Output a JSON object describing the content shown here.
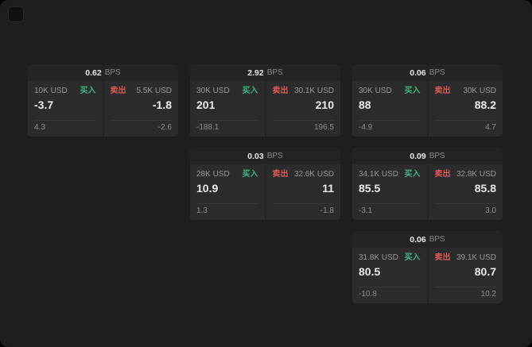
{
  "labels": {
    "buy": "买入",
    "sell": "卖出",
    "bps": "BPS"
  },
  "colors": {
    "buy": "#3cb783",
    "sell": "#e05a56"
  },
  "cards": [
    {
      "bps": "0.62",
      "buy": {
        "size": "10K USD",
        "price": "-3.7",
        "sub": "4.3"
      },
      "sell": {
        "size": "5.5K USD",
        "price": "-1.8",
        "sub": "-2.6"
      }
    },
    {
      "bps": "2.92",
      "buy": {
        "size": "30K USD",
        "price": "201",
        "sub": "-188.1"
      },
      "sell": {
        "size": "30.1K USD",
        "price": "210",
        "sub": "196.5"
      }
    },
    {
      "bps": "0.06",
      "buy": {
        "size": "30K USD",
        "price": "88",
        "sub": "-4.9"
      },
      "sell": {
        "size": "30K USD",
        "price": "88.2",
        "sub": "4.7"
      }
    },
    {
      "bps": "0.03",
      "buy": {
        "size": "28K USD",
        "price": "10.9",
        "sub": "1.3"
      },
      "sell": {
        "size": "32.6K USD",
        "price": "11",
        "sub": "-1.8"
      }
    },
    {
      "bps": "0.09",
      "buy": {
        "size": "34.1K USD",
        "price": "85.5",
        "sub": "-3.1"
      },
      "sell": {
        "size": "32.8K USD",
        "price": "85.8",
        "sub": "3.0"
      }
    },
    {
      "bps": "0.06",
      "buy": {
        "size": "31.8K USD",
        "price": "80.5",
        "sub": "-10.8"
      },
      "sell": {
        "size": "39.1K USD",
        "price": "80.7",
        "sub": "10.2"
      }
    }
  ]
}
